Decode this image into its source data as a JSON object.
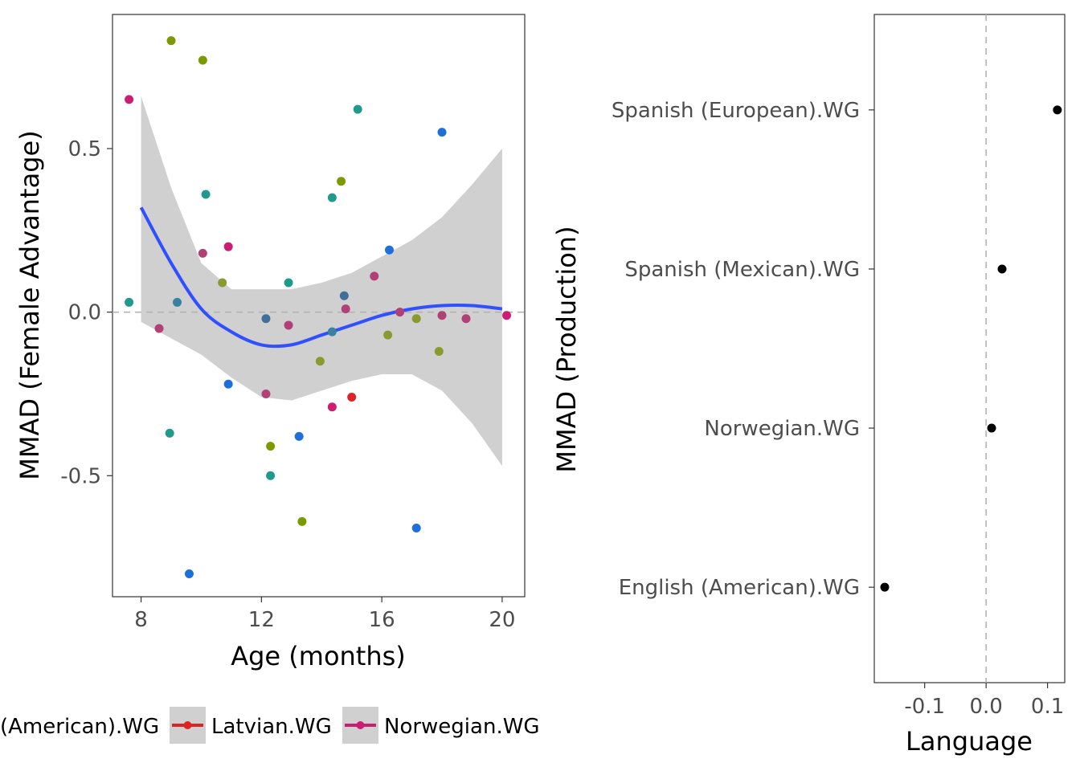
{
  "chart_data": [
    {
      "type": "scatter",
      "xlabel": "Age (months)",
      "ylabel": "MMAD (Female Advantage)",
      "xlim": [
        7.05,
        20.75
      ],
      "ylim": [
        -0.87,
        0.91
      ],
      "x_ticks": [
        8,
        12,
        16,
        20
      ],
      "x_tick_labels": [
        "8",
        "12",
        "16",
        "20"
      ],
      "y_ticks": [
        0.5,
        0.0,
        -0.5
      ],
      "y_tick_labels": [
        "0.5",
        "0.0",
        "-0.5"
      ],
      "reference_line_y": 0,
      "grid": false,
      "legend_position": "bottom",
      "legend": [
        {
          "label": "English (American).WG",
          "color": "#1e6fd9"
        },
        {
          "label": "Latvian.WG",
          "color": "#dc2424"
        },
        {
          "label": "Norwegian.WG",
          "color": "#cc1c74"
        }
      ],
      "legend_visible_text": [
        "(American).WG",
        "Latvian.WG",
        "Norwegian.WG"
      ],
      "smooth": {
        "color": "#3050ff",
        "ribbon_color": "#d0d0d0",
        "x": [
          8,
          9,
          10,
          11,
          12,
          13,
          14,
          15,
          16,
          17,
          18,
          19,
          20
        ],
        "y": [
          0.32,
          0.15,
          0.01,
          -0.06,
          -0.1,
          -0.1,
          -0.07,
          -0.04,
          -0.01,
          0.01,
          0.02,
          0.02,
          0.01
        ],
        "lower": [
          -0.03,
          -0.08,
          -0.13,
          -0.2,
          -0.26,
          -0.27,
          -0.24,
          -0.21,
          -0.19,
          -0.19,
          -0.24,
          -0.34,
          -0.47
        ],
        "upper": [
          0.66,
          0.38,
          0.15,
          0.07,
          0.07,
          0.07,
          0.09,
          0.12,
          0.17,
          0.22,
          0.29,
          0.39,
          0.5
        ]
      },
      "points": [
        {
          "x": 7.6,
          "y": 0.65,
          "color": "#cc1c74"
        },
        {
          "x": 7.6,
          "y": 0.03,
          "color": "#1f9a8c"
        },
        {
          "x": 8.6,
          "y": -0.05,
          "color": "#b04075"
        },
        {
          "x": 9.0,
          "y": 0.83,
          "color": "#7a9a00"
        },
        {
          "x": 8.95,
          "y": -0.37,
          "color": "#1f9a8c"
        },
        {
          "x": 9.2,
          "y": 0.03,
          "color": "#3a80a0"
        },
        {
          "x": 9.6,
          "y": -0.8,
          "color": "#1e6fd9"
        },
        {
          "x": 10.05,
          "y": 0.77,
          "color": "#7a9a00"
        },
        {
          "x": 10.05,
          "y": 0.18,
          "color": "#b04075"
        },
        {
          "x": 10.15,
          "y": 0.36,
          "color": "#1f9a8c"
        },
        {
          "x": 10.9,
          "y": 0.2,
          "color": "#cc1c74"
        },
        {
          "x": 10.9,
          "y": -0.22,
          "color": "#1e6fd9"
        },
        {
          "x": 10.7,
          "y": 0.09,
          "color": "#8a9a30"
        },
        {
          "x": 12.15,
          "y": -0.02,
          "color": "#40709a"
        },
        {
          "x": 12.15,
          "y": -0.25,
          "color": "#b04075"
        },
        {
          "x": 12.3,
          "y": -0.41,
          "color": "#7a9a00"
        },
        {
          "x": 12.3,
          "y": -0.5,
          "color": "#1f9a8c"
        },
        {
          "x": 12.9,
          "y": 0.09,
          "color": "#1f9a8c"
        },
        {
          "x": 12.9,
          "y": -0.04,
          "color": "#b04075"
        },
        {
          "x": 13.25,
          "y": -0.38,
          "color": "#1e6fd9"
        },
        {
          "x": 13.35,
          "y": -0.64,
          "color": "#7a9a00"
        },
        {
          "x": 13.95,
          "y": -0.15,
          "color": "#8a9a30"
        },
        {
          "x": 14.35,
          "y": 0.35,
          "color": "#1f9a8c"
        },
        {
          "x": 14.35,
          "y": -0.06,
          "color": "#3a80a0"
        },
        {
          "x": 14.35,
          "y": -0.29,
          "color": "#cc1c74"
        },
        {
          "x": 14.65,
          "y": 0.4,
          "color": "#7a9a00"
        },
        {
          "x": 14.75,
          "y": 0.05,
          "color": "#40709a"
        },
        {
          "x": 14.8,
          "y": 0.01,
          "color": "#b04075"
        },
        {
          "x": 15.0,
          "y": -0.26,
          "color": "#dc2424"
        },
        {
          "x": 15.2,
          "y": 0.62,
          "color": "#1f9a8c"
        },
        {
          "x": 15.75,
          "y": 0.11,
          "color": "#b04075"
        },
        {
          "x": 16.2,
          "y": -0.07,
          "color": "#8a9a30"
        },
        {
          "x": 16.25,
          "y": 0.19,
          "color": "#1e6fd9"
        },
        {
          "x": 16.6,
          "y": 0.0,
          "color": "#b04075"
        },
        {
          "x": 17.15,
          "y": -0.02,
          "color": "#8a9a30"
        },
        {
          "x": 17.15,
          "y": -0.66,
          "color": "#1e6fd9"
        },
        {
          "x": 17.9,
          "y": -0.12,
          "color": "#8a9a30"
        },
        {
          "x": 18.0,
          "y": 0.55,
          "color": "#1e6fd9"
        },
        {
          "x": 18.0,
          "y": -0.01,
          "color": "#b04075"
        },
        {
          "x": 18.8,
          "y": -0.02,
          "color": "#b04075"
        },
        {
          "x": 20.15,
          "y": -0.01,
          "color": "#cc1c74"
        }
      ]
    },
    {
      "type": "scatter",
      "xlabel": "Language",
      "ylabel": "MMAD (Production)",
      "xlim": [
        -0.182,
        0.128
      ],
      "x_ticks": [
        -0.1,
        0.0,
        0.1
      ],
      "x_tick_labels": [
        "-0.1",
        "0.0",
        "0.1"
      ],
      "reference_line_x": 0,
      "grid": false,
      "categories": [
        "Spanish (European).WG",
        "Spanish (Mexican).WG",
        "Norwegian.WG",
        "English (American).WG"
      ],
      "values": [
        0.116,
        0.026,
        0.009,
        -0.165
      ]
    }
  ]
}
